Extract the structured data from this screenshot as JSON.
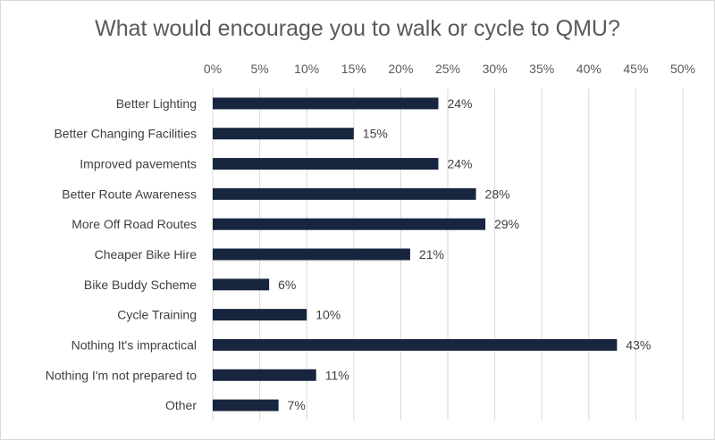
{
  "chart_data": {
    "type": "bar",
    "orientation": "horizontal",
    "title": "What would encourage you to walk or cycle to QMU?",
    "categories": [
      "Better Lighting",
      "Better Changing Facilities",
      "Improved pavements",
      "Better Route Awareness",
      "More Off Road Routes",
      "Cheaper Bike Hire",
      "Bike Buddy Scheme",
      "Cycle Training",
      "Nothing It's impractical",
      "Nothing I'm not prepared to",
      "Other"
    ],
    "values": [
      24,
      15,
      24,
      28,
      29,
      21,
      6,
      10,
      43,
      11,
      7
    ],
    "data_labels": [
      "24%",
      "15%",
      "24%",
      "28%",
      "29%",
      "21%",
      "6%",
      "10%",
      "43%",
      "11%",
      "7%"
    ],
    "xlim": [
      0,
      50
    ],
    "x_ticks": [
      0,
      5,
      10,
      15,
      20,
      25,
      30,
      35,
      40,
      45,
      50
    ],
    "x_tick_labels": [
      "0%",
      "5%",
      "10%",
      "15%",
      "20%",
      "25%",
      "30%",
      "35%",
      "40%",
      "45%",
      "50%"
    ],
    "x_axis_position": "top",
    "grid": true,
    "legend": "none",
    "bar_color": "#17253f",
    "grid_color": "#d9d9d9"
  }
}
